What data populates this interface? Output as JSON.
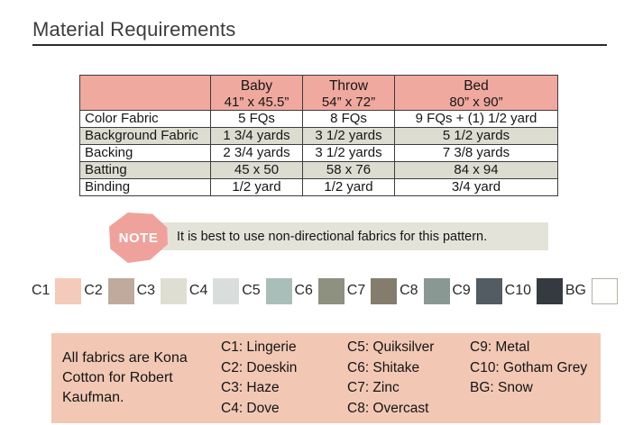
{
  "header": {
    "title": "Material Requirements"
  },
  "table": {
    "columns": [
      {
        "name": "Baby",
        "size": "41” x 45.5”"
      },
      {
        "name": "Throw",
        "size": "54” x 72”"
      },
      {
        "name": "Bed",
        "size": "80” x 90”"
      }
    ],
    "rows": [
      {
        "label": "Color Fabric",
        "baby": "5 FQs",
        "throw": "8 FQs",
        "bed": "9 FQs + (1) 1/2 yard"
      },
      {
        "label": "Background Fabric",
        "baby": "1 3/4 yards",
        "throw": "3 1/2 yards",
        "bed": "5 1/2 yards"
      },
      {
        "label": "Backing",
        "baby": "2 3/4 yards",
        "throw": "3 1/2 yards",
        "bed": "7 3/8 yards"
      },
      {
        "label": "Batting",
        "baby": "45 x 50",
        "throw": "58 x 76",
        "bed": "84 x 94"
      },
      {
        "label": "Binding",
        "baby": "1/2 yard",
        "throw": "1/2 yard",
        "bed": "3/4 yard"
      }
    ]
  },
  "note": {
    "badge": "NOTE",
    "text": "It is best to use non-directional fabrics for this pattern."
  },
  "swatches": {
    "items": [
      {
        "label": "C1",
        "color": "#f4cabb"
      },
      {
        "label": "C2",
        "color": "#c0aa9d"
      },
      {
        "label": "C3",
        "color": "#dfded2"
      },
      {
        "label": "C4",
        "color": "#d9dedc"
      },
      {
        "label": "C5",
        "color": "#aabeb9"
      },
      {
        "label": "C6",
        "color": "#8e9080"
      },
      {
        "label": "C7",
        "color": "#847d6e"
      },
      {
        "label": "C8",
        "color": "#8a9894"
      },
      {
        "label": "C9",
        "color": "#535c62"
      },
      {
        "label": "C10",
        "color": "#343a40"
      },
      {
        "label": "BG",
        "color": "#ffffff"
      }
    ]
  },
  "legend": {
    "intro": "All fabrics are Kona Cotton for Robert Kaufman.",
    "col1": [
      "C1: Lingerie",
      "C2: Doeskin",
      "C3: Haze",
      "C4: Dove"
    ],
    "col2": [
      "C5: Quiksilver",
      "C6: Shitake",
      "C7: Zinc",
      "C8: Overcast"
    ],
    "col3": [
      "C9: Metal",
      "C10: Gotham Grey",
      "BG: Snow"
    ]
  },
  "colors": {
    "table_header_bg": "#f0a99f",
    "row_stripe_bg": "#dddcd1",
    "note_badge_bg": "#efa29b",
    "note_bar_bg": "#e4e3d9",
    "legend_box_bg": "#f2c8b5"
  }
}
